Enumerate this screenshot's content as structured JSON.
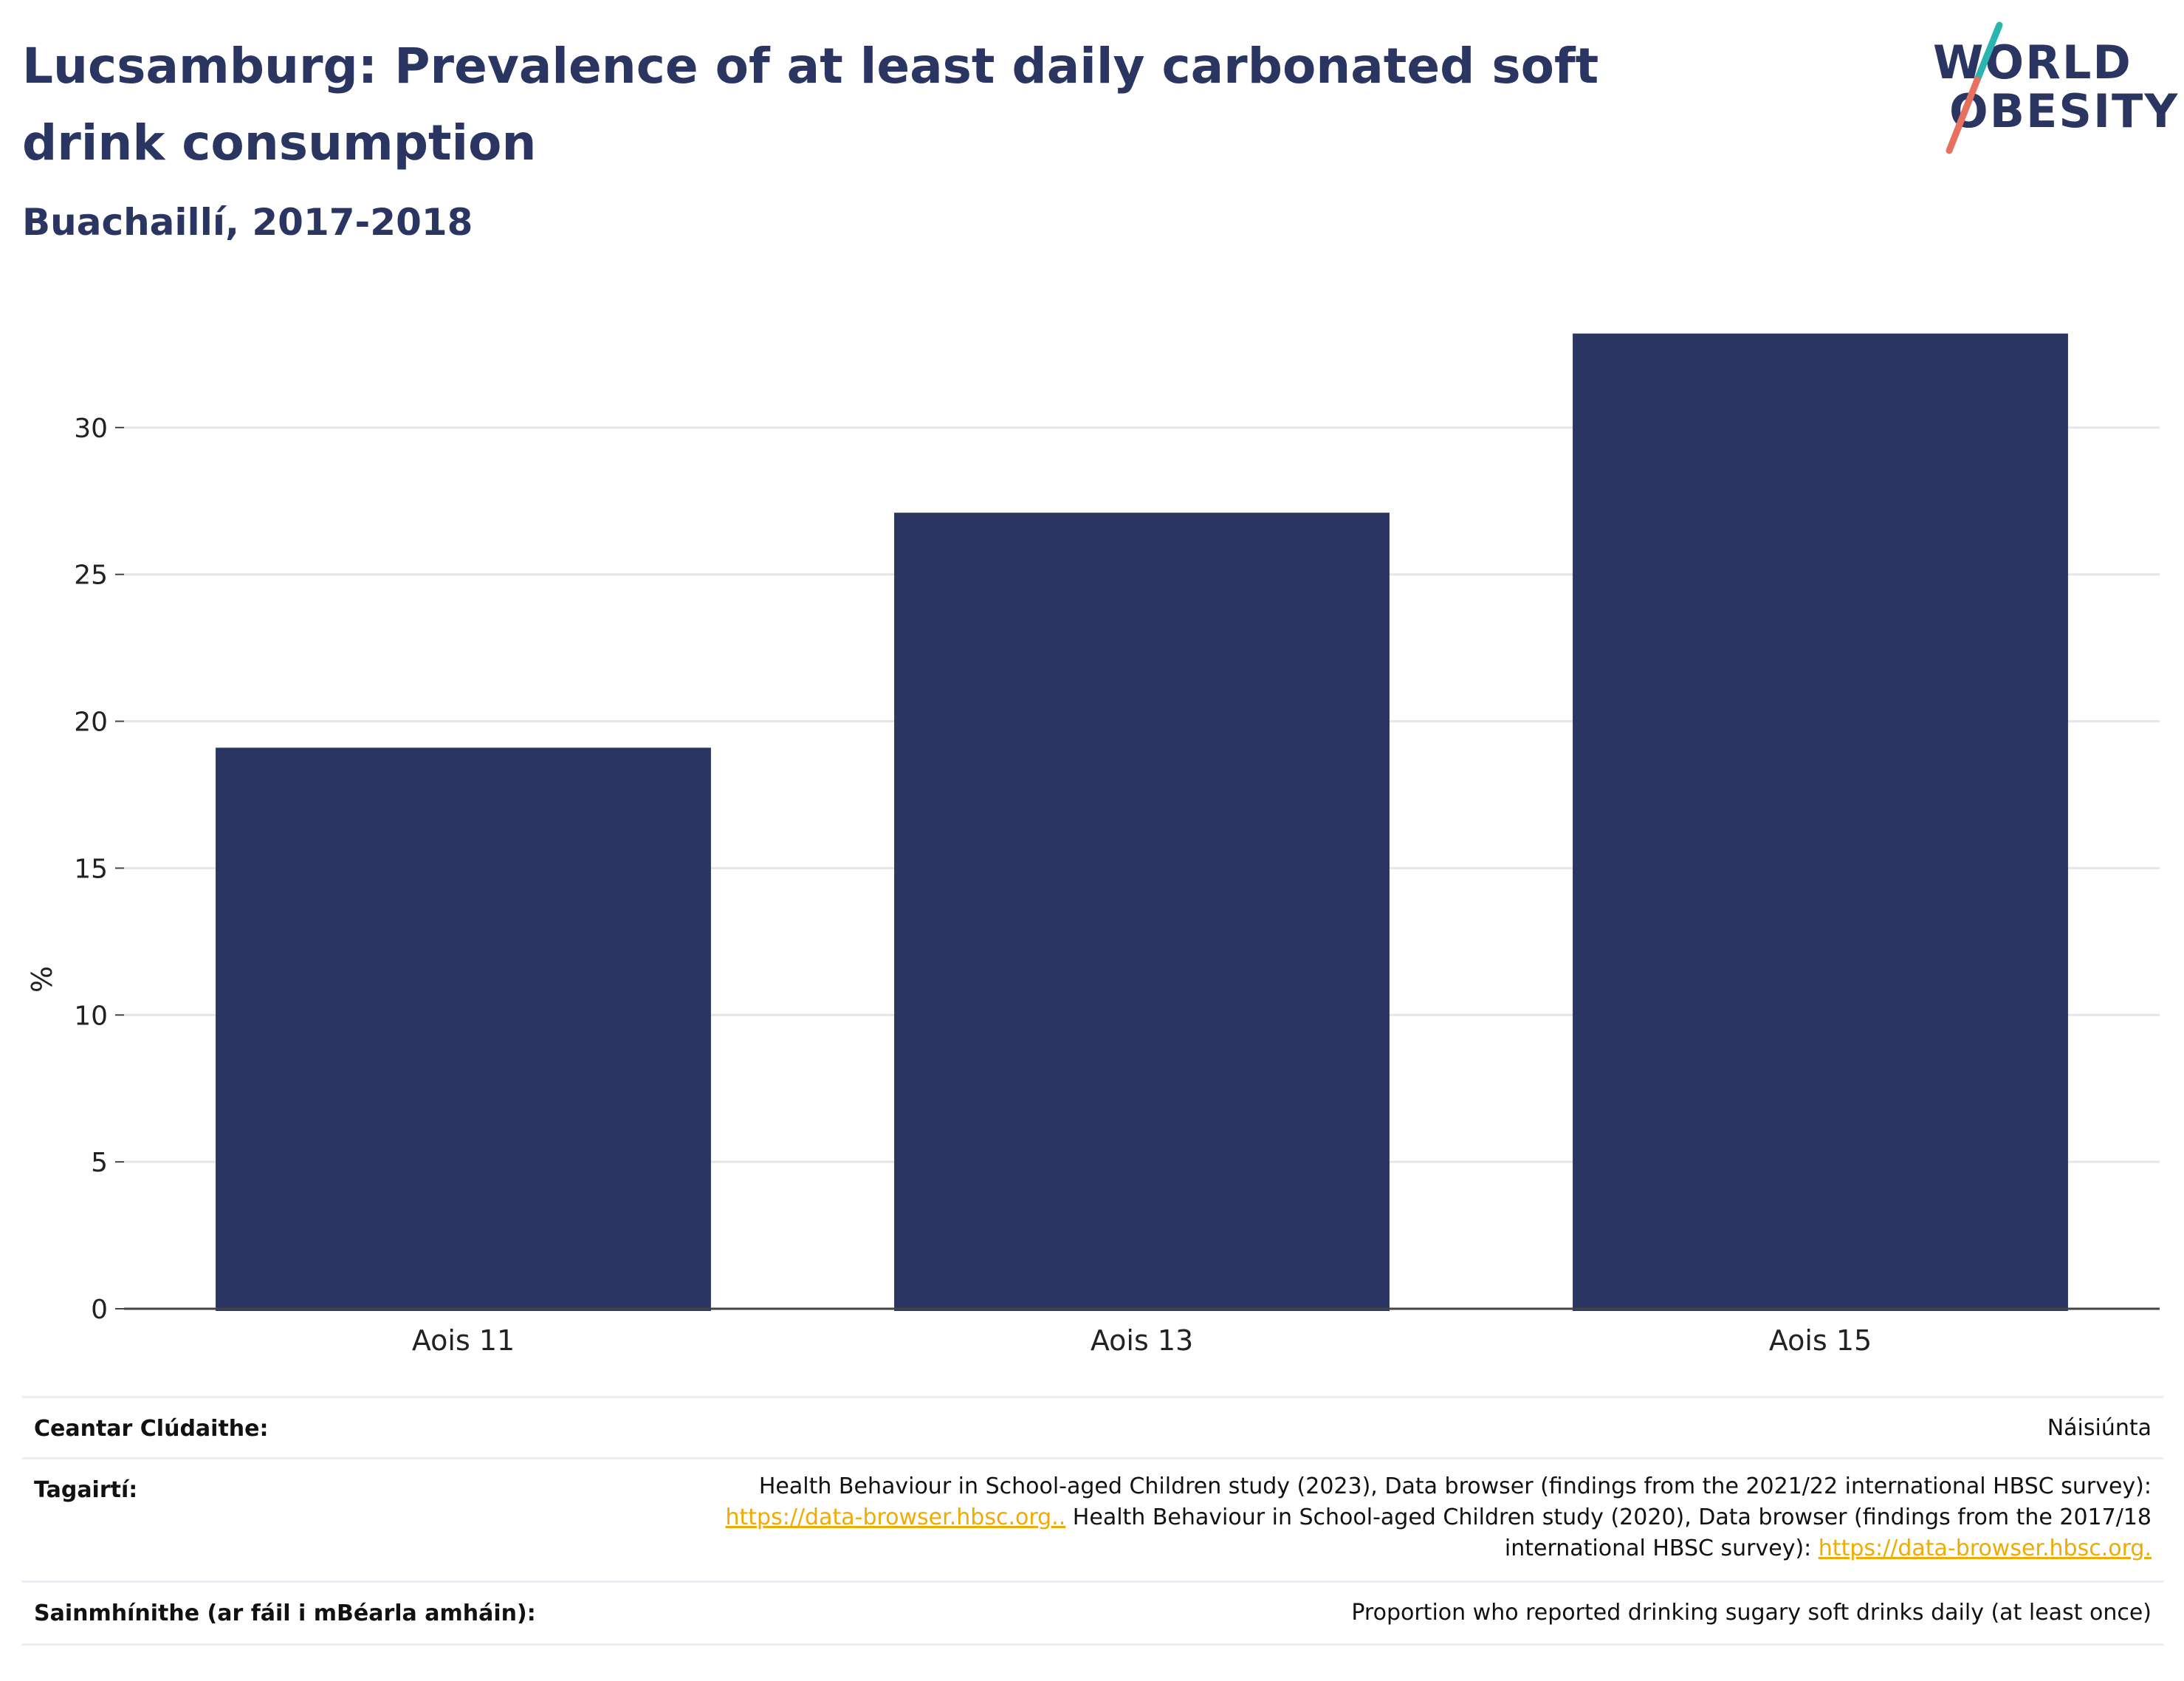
{
  "header": {
    "title": "Lucsamburg: Prevalence of at least daily carbonated soft drink consumption",
    "subtitle": "Buachaillí, 2017-2018"
  },
  "logo": {
    "line1": "WORLD",
    "line2": "OBESITY",
    "accent_teal": "#2bb5b0",
    "accent_coral": "#e8705e"
  },
  "chart_data": {
    "type": "bar",
    "categories": [
      "Aois 11",
      "Aois 13",
      "Aois 15"
    ],
    "values": [
      19.1,
      27.1,
      33.2
    ],
    "title": "Lucsamburg: Prevalence of at least daily carbonated soft drink consumption",
    "subtitle": "Buachaillí, 2017-2018",
    "xlabel": "",
    "ylabel": "%",
    "ylim": [
      0,
      35
    ],
    "yticks": [
      0,
      5,
      10,
      15,
      20,
      25,
      30
    ],
    "grid": true,
    "bar_color": "#2a3561"
  },
  "info": {
    "coverage_label": "Ceantar Clúdaithe:",
    "coverage_value": "Náisiúnta",
    "refs_label": "Tagairtí:",
    "refs_text1": "Health Behaviour in School-aged Children study (2023), Data browser (findings from the 2021/22 international HBSC survey):",
    "refs_link1": "https://data-browser.hbsc.org..",
    "refs_text2": " Health Behaviour in School-aged Children study (2020), Data browser (findings from the 2017/18",
    "refs_text3": "international HBSC survey): ",
    "refs_link2": "https://data-browser.hbsc.org.",
    "defs_label": "Sainmhínithe (ar fáil i mBéarla amháin):",
    "defs_value": "Proportion who reported drinking sugary soft drinks daily (at least once)"
  }
}
